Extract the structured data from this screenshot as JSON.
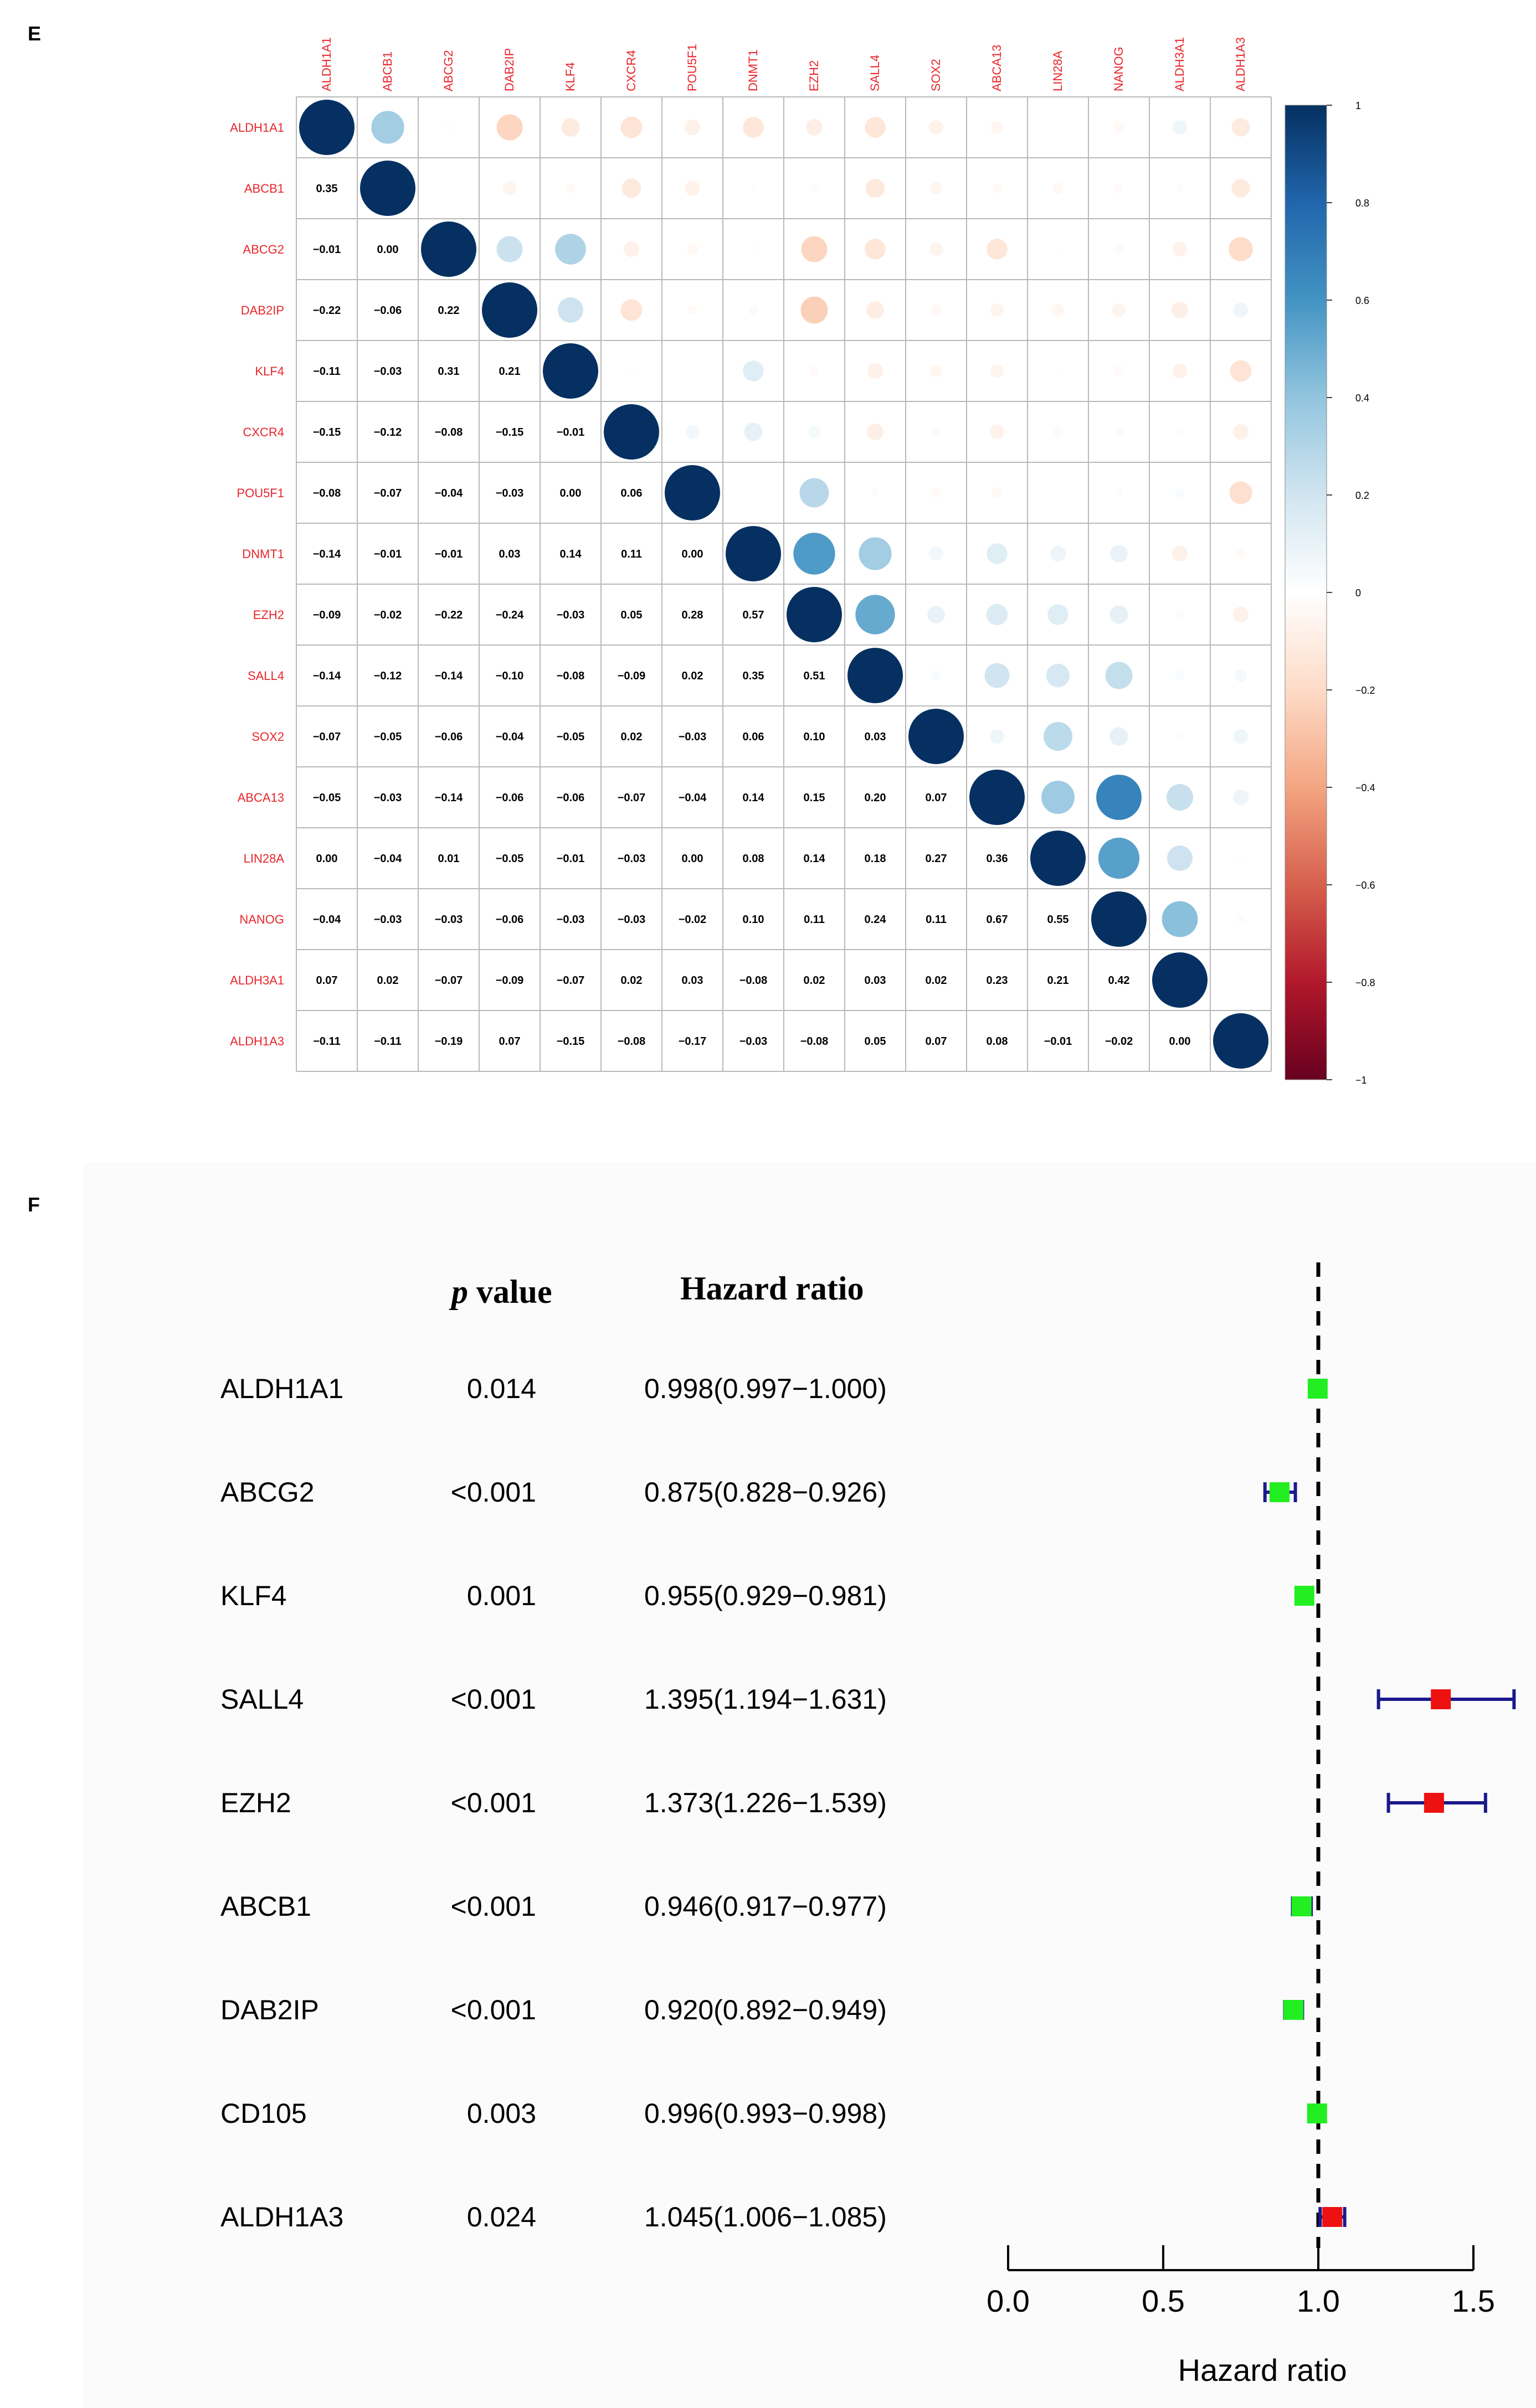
{
  "panel_e": {
    "letter": "E",
    "chart_data": {
      "type": "heatmap",
      "style": "correlation matrix (lower triangle coefficients, upper triangle circles sized/colored by r)",
      "genes": [
        "ALDH1A1",
        "ABCB1",
        "ABCG2",
        "DAB2IP",
        "KLF4",
        "CXCR4",
        "POU5F1",
        "DNMT1",
        "EZH2",
        "SALL4",
        "SOX2",
        "ABCA13",
        "LIN28A",
        "NANOG",
        "ALDH3A1",
        "ALDH1A3"
      ],
      "labels": [
        [
          "",
          "",
          "",
          "",
          "",
          "",
          "",
          "",
          "",
          "",
          "",
          "",
          "",
          "",
          "",
          ""
        ],
        [
          "0.35",
          "",
          "",
          "",
          "",
          "",
          "",
          "",
          "",
          "",
          "",
          "",
          "",
          "",
          "",
          ""
        ],
        [
          "−0.01",
          "0.00",
          "",
          "",
          "",
          "",
          "",
          "",
          "",
          "",
          "",
          "",
          "",
          "",
          "",
          ""
        ],
        [
          "−0.22",
          "−0.06",
          "0.22",
          "",
          "",
          "",
          "",
          "",
          "",
          "",
          "",
          "",
          "",
          "",
          "",
          ""
        ],
        [
          "−0.11",
          "−0.03",
          "0.31",
          "0.21",
          "",
          "",
          "",
          "",
          "",
          "",
          "",
          "",
          "",
          "",
          "",
          ""
        ],
        [
          "−0.15",
          "−0.12",
          "−0.08",
          "−0.15",
          "−0.01",
          "",
          "",
          "",
          "",
          "",
          "",
          "",
          "",
          "",
          "",
          ""
        ],
        [
          "−0.08",
          "−0.07",
          "−0.04",
          "−0.03",
          "0.00",
          "0.06",
          "",
          "",
          "",
          "",
          "",
          "",
          "",
          "",
          "",
          ""
        ],
        [
          "−0.14",
          "−0.01",
          "−0.01",
          "0.03",
          "0.14",
          "0.11",
          "0.00",
          "",
          "",
          "",
          "",
          "",
          "",
          "",
          "",
          ""
        ],
        [
          "−0.09",
          "−0.02",
          "−0.22",
          "−0.24",
          "−0.03",
          "0.05",
          "0.28",
          "0.57",
          "",
          "",
          "",
          "",
          "",
          "",
          "",
          ""
        ],
        [
          "−0.14",
          "−0.12",
          "−0.14",
          "−0.10",
          "−0.08",
          "−0.09",
          "0.02",
          "0.35",
          "0.51",
          "",
          "",
          "",
          "",
          "",
          "",
          ""
        ],
        [
          "−0.07",
          "−0.05",
          "−0.06",
          "−0.04",
          "−0.05",
          "0.02",
          "−0.03",
          "0.06",
          "0.10",
          "0.03",
          "",
          "",
          "",
          "",
          "",
          ""
        ],
        [
          "−0.05",
          "−0.03",
          "−0.14",
          "−0.06",
          "−0.06",
          "−0.07",
          "−0.04",
          "0.14",
          "0.15",
          "0.20",
          "0.07",
          "",
          "",
          "",
          "",
          ""
        ],
        [
          "0.00",
          "−0.04",
          "0.01",
          "−0.05",
          "−0.01",
          "−0.03",
          "0.00",
          "0.08",
          "0.14",
          "0.18",
          "0.27",
          "0.36",
          "",
          "",
          "",
          ""
        ],
        [
          "−0.04",
          "−0.03",
          "−0.03",
          "−0.06",
          "−0.03",
          "−0.03",
          "−0.02",
          "0.10",
          "0.11",
          "0.24",
          "0.11",
          "0.67",
          "0.55",
          "",
          "",
          ""
        ],
        [
          "0.07",
          "0.02",
          "−0.07",
          "−0.09",
          "−0.07",
          "0.02",
          "0.03",
          "−0.08",
          "0.02",
          "0.03",
          "0.02",
          "0.23",
          "0.21",
          "0.42",
          "",
          ""
        ],
        [
          "−0.11",
          "−0.11",
          "−0.19",
          "0.07",
          "−0.15",
          "−0.08",
          "−0.17",
          "−0.03",
          "−0.08",
          "0.05",
          "0.07",
          "0.08",
          "−0.01",
          "−0.02",
          "0.00",
          ""
        ]
      ],
      "colorbar": {
        "range": [
          -1,
          1
        ],
        "ticks": [
          "1",
          "0.8",
          "0.6",
          "0.4",
          "0.2",
          "0",
          "−0.2",
          "−0.4",
          "−0.6",
          "−0.8",
          "−1"
        ],
        "colors": [
          "#67001f",
          "#b2182b",
          "#d6604d",
          "#f4a582",
          "#fddbc7",
          "#ffffff",
          "#d1e5f0",
          "#92c5de",
          "#4393c3",
          "#2166ac",
          "#053061"
        ]
      },
      "label_color": "#e8262b"
    }
  },
  "panel_f": {
    "letter": "F",
    "chart_data": {
      "type": "forest",
      "header_p": "value",
      "header_p_italic": "p",
      "header_hr": "Hazard ratio",
      "rows": [
        {
          "gene": "ALDH1A1",
          "p": "0.014",
          "hr_text": "0.998(0.997−1.000)",
          "hr": 0.998,
          "lo": 0.997,
          "hi": 1.0
        },
        {
          "gene": "ABCG2",
          "p": "<0.001",
          "hr_text": "0.875(0.828−0.926)",
          "hr": 0.875,
          "lo": 0.828,
          "hi": 0.926
        },
        {
          "gene": "KLF4",
          "p": "0.001",
          "hr_text": "0.955(0.929−0.981)",
          "hr": 0.955,
          "lo": 0.929,
          "hi": 0.981
        },
        {
          "gene": "SALL4",
          "p": "<0.001",
          "hr_text": "1.395(1.194−1.631)",
          "hr": 1.395,
          "lo": 1.194,
          "hi": 1.631
        },
        {
          "gene": "EZH2",
          "p": "<0.001",
          "hr_text": "1.373(1.226−1.539)",
          "hr": 1.373,
          "lo": 1.226,
          "hi": 1.539
        },
        {
          "gene": "ABCB1",
          "p": "<0.001",
          "hr_text": "0.946(0.917−0.977)",
          "hr": 0.946,
          "lo": 0.917,
          "hi": 0.977
        },
        {
          "gene": "DAB2IP",
          "p": "<0.001",
          "hr_text": "0.920(0.892−0.949)",
          "hr": 0.92,
          "lo": 0.892,
          "hi": 0.949
        },
        {
          "gene": "CD105",
          "p": "0.003",
          "hr_text": "0.996(0.993−0.998)",
          "hr": 0.996,
          "lo": 0.993,
          "hi": 0.998
        },
        {
          "gene": "ALDH1A3",
          "p": "0.024",
          "hr_text": "1.045(1.006−1.085)",
          "hr": 1.045,
          "lo": 1.006,
          "hi": 1.085
        }
      ],
      "xlim": [
        0,
        1.5
      ],
      "xticks": [
        "0.0",
        "0.5",
        "1.0",
        "1.5"
      ],
      "xlabel": "Hazard ratio",
      "reference_line": 1.0,
      "colors": {
        "protective": "#22ee22",
        "risk": "#ee1111",
        "ci": "#1a1a8c"
      }
    }
  }
}
